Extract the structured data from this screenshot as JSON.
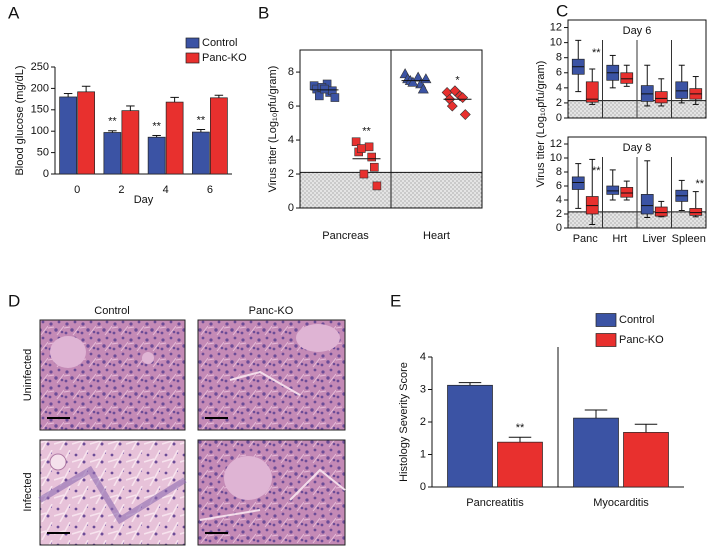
{
  "chart_data": [
    {
      "type": "bar",
      "panel": "A",
      "ylabel": "Blood glucose (mg/dL)",
      "xlabel": "Day",
      "categories": [
        "0",
        "2",
        "4",
        "6"
      ],
      "series": [
        {
          "name": "Control",
          "color": "#3b53a4",
          "values": [
            180,
            97,
            86,
            98
          ],
          "errors": [
            8,
            4,
            4,
            6
          ]
        },
        {
          "name": "Panc-KO",
          "color": "#e8302e",
          "values": [
            192,
            148,
            168,
            178
          ],
          "errors": [
            13,
            11,
            11,
            6
          ]
        }
      ],
      "significance": [
        null,
        "**",
        "**",
        "**"
      ],
      "ylim": [
        0,
        250
      ],
      "yticks": [
        0,
        50,
        100,
        150,
        200,
        250
      ]
    },
    {
      "type": "dot",
      "panel": "B",
      "ylabel": "Virus titer (Log₁₀pfu/gram)",
      "categories": [
        "Pancreas",
        "Heart"
      ],
      "series": [
        {
          "color": "#3b53a4",
          "markers": [
            "square",
            "triangle"
          ],
          "values": [
            [
              7.2,
              7.3,
              7.0,
              6.8,
              6.6,
              6.9,
              7.1,
              6.5,
              7.0
            ],
            [
              7.9,
              7.7,
              7.6,
              7.3,
              7.5,
              7.0,
              7.4,
              7.6
            ]
          ],
          "means": [
            6.95,
            7.5
          ]
        },
        {
          "color": "#e8302e",
          "markers": [
            "square",
            "diamond"
          ],
          "values": [
            [
              3.9,
              3.6,
              3.3,
              3.0,
              3.5,
              2.4,
              2.0,
              1.3
            ],
            [
              6.8,
              6.6,
              6.4,
              6.5,
              6.0,
              5.5,
              6.9
            ]
          ],
          "means": [
            2.9,
            6.4
          ]
        }
      ],
      "significance": [
        "**",
        "*"
      ],
      "detection_limit": 2.1,
      "ylim": [
        0,
        9.3
      ],
      "yticks": [
        0,
        2,
        4,
        6,
        8
      ]
    },
    {
      "type": "box",
      "panel": "C",
      "title": "Day 6",
      "ylabel": "Virus titer (Log₁₀pfu/gram)",
      "series": [
        {
          "color": "#3b53a4",
          "stats": [
            [
              3.5,
              5.8,
              6.8,
              7.8,
              10.3
            ],
            [
              4,
              5,
              6,
              7,
              8.3
            ],
            [
              1.6,
              2.2,
              3.2,
              4.3,
              7.0
            ],
            [
              2,
              2.6,
              3.6,
              4.8,
              7.0
            ]
          ]
        },
        {
          "color": "#e8302e",
          "stats": [
            [
              1.8,
              2.1,
              2.5,
              4.8,
              6.5
            ],
            [
              4.2,
              4.6,
              5.2,
              6.0,
              7.0
            ],
            [
              1.6,
              2.0,
              2.6,
              3.5,
              5.2
            ],
            [
              1.8,
              2.5,
              3.2,
              3.9,
              5.5
            ]
          ]
        }
      ],
      "significance": [
        "**",
        null,
        null,
        null
      ],
      "detection_limit": 2.3,
      "ylim": [
        0,
        13
      ],
      "yticks": [
        0,
        2,
        4,
        6,
        8,
        10,
        12
      ]
    },
    {
      "type": "box",
      "title": "Day 8",
      "categories": [
        "Panc",
        "Hrt",
        "Liver",
        "Spleen"
      ],
      "series": [
        {
          "color": "#3b53a4",
          "stats": [
            [
              2.8,
              5.5,
              6.5,
              7.3,
              9.2
            ],
            [
              4,
              4.8,
              5.3,
              6,
              8.3
            ],
            [
              1.5,
              2,
              3.2,
              4.8,
              9.6
            ],
            [
              2.5,
              3.8,
              4.6,
              5.4,
              6.8
            ]
          ]
        },
        {
          "color": "#e8302e",
          "stats": [
            [
              0.5,
              2.0,
              3.2,
              4.5,
              9.8
            ],
            [
              4,
              4.4,
              5,
              5.8,
              6.7
            ],
            [
              1.6,
              1.7,
              2.2,
              3.0,
              3.8
            ],
            [
              1.6,
              1.8,
              2.2,
              2.8,
              5.2
            ]
          ]
        }
      ],
      "significance": [
        "**",
        null,
        null,
        "**"
      ],
      "detection_limit": 2.3,
      "ylim": [
        0,
        13
      ],
      "yticks": [
        0,
        2,
        4,
        6,
        8,
        10,
        12
      ]
    },
    {
      "type": "bar",
      "panel": "E",
      "ylabel": "Histology Severity Score",
      "categories": [
        "Pancreatitis",
        "Myocarditis"
      ],
      "series": [
        {
          "name": "Control",
          "color": "#3b53a4",
          "values": [
            3.13,
            2.12
          ],
          "errors": [
            0.08,
            0.25
          ]
        },
        {
          "name": "Panc-KO",
          "color": "#e8302e",
          "values": [
            1.38,
            1.68
          ],
          "errors": [
            0.15,
            0.25
          ]
        }
      ],
      "significance": [
        "**",
        null
      ],
      "ylim": [
        0,
        4
      ],
      "yticks": [
        0,
        1,
        2,
        3,
        4
      ]
    }
  ],
  "histology": {
    "panel": "D",
    "columns": [
      "Control",
      "Panc-KO"
    ],
    "rows": [
      "Uninfected",
      "Infected"
    ]
  }
}
